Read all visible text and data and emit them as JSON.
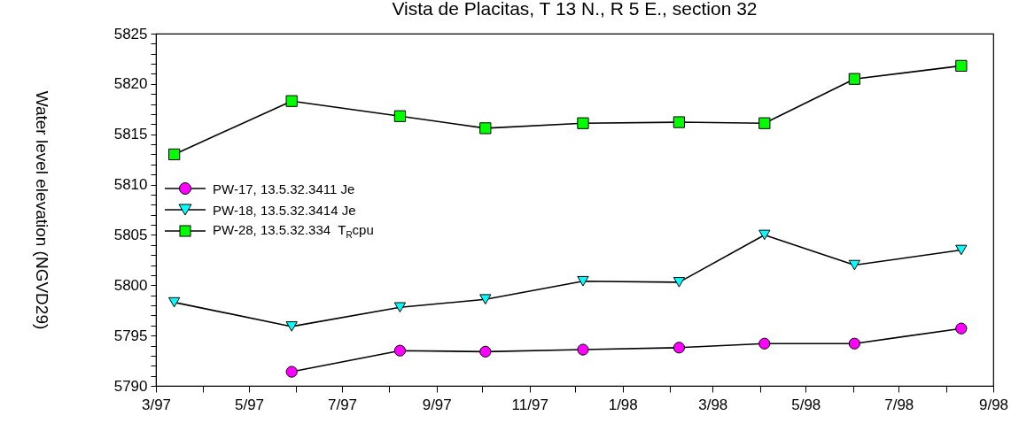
{
  "chart_data": {
    "type": "line",
    "title": "Vista de Placitas, T 13 N., R 5 E., section 32",
    "ylabel": "Water level elevation (NGVD29)",
    "x": [
      "1997-03-13",
      "1997-05-29",
      "1997-08-08",
      "1997-10-03",
      "1997-12-06",
      "1998-02-07",
      "1998-04-04",
      "1998-06-02",
      "1998-08-11"
    ],
    "series": [
      {
        "name": "PW-17, 13.5.32.3411 Je",
        "color": "#ff00ff",
        "marker": "circle",
        "values": [
          null,
          5791.4,
          5793.5,
          5793.4,
          5793.6,
          5793.8,
          5794.2,
          5794.2,
          5795.7
        ]
      },
      {
        "name": "PW-18, 13.5.32.3414 Je",
        "color": "#00ffff",
        "marker": "triangle",
        "values": [
          5798.3,
          5795.9,
          5797.8,
          5798.6,
          5800.4,
          5800.3,
          5805.0,
          5802.0,
          5803.5
        ]
      },
      {
        "name": "PW-28, 13.5.32.334  T$_{R}$cpu",
        "color": "#00ff00",
        "marker": "square",
        "values": [
          5813.0,
          5818.3,
          5816.8,
          5815.6,
          5816.1,
          5816.2,
          5816.1,
          5820.5,
          5821.8
        ]
      }
    ],
    "xlim": [
      "1997-03-01",
      "1998-09-01"
    ],
    "xticks": [
      {
        "value": "1997-03-01",
        "label": "3/97"
      },
      {
        "value": "1997-04-01",
        "label": null
      },
      {
        "value": "1997-05-01",
        "label": "5/97"
      },
      {
        "value": "1997-06-01",
        "label": null
      },
      {
        "value": "1997-07-01",
        "label": "7/97"
      },
      {
        "value": "1997-08-01",
        "label": null
      },
      {
        "value": "1997-09-01",
        "label": "9/97"
      },
      {
        "value": "1997-10-01",
        "label": null
      },
      {
        "value": "1997-11-01",
        "label": "11/97"
      },
      {
        "value": "1997-12-01",
        "label": null
      },
      {
        "value": "1998-01-01",
        "label": "1/98"
      },
      {
        "value": "1998-02-01",
        "label": null
      },
      {
        "value": "1998-03-01",
        "label": "3/98"
      },
      {
        "value": "1998-04-01",
        "label": null
      },
      {
        "value": "1998-05-01",
        "label": "5/98"
      },
      {
        "value": "1998-06-01",
        "label": null
      },
      {
        "value": "1998-07-01",
        "label": "7/98"
      },
      {
        "value": "1998-08-01",
        "label": null
      },
      {
        "value": "1998-09-01",
        "label": "9/98"
      }
    ],
    "ylim": [
      5790,
      5825
    ],
    "yticks": [
      5790,
      {
        "value": 5791,
        "label": null
      },
      {
        "value": 5792,
        "label": null
      },
      {
        "value": 5793,
        "label": null
      },
      {
        "value": 5794,
        "label": null
      },
      5795,
      {
        "value": 5796,
        "label": null
      },
      {
        "value": 5797,
        "label": null
      },
      {
        "value": 5798,
        "label": null
      },
      {
        "value": 5799,
        "label": null
      },
      5800,
      {
        "value": 5801,
        "label": null
      },
      {
        "value": 5802,
        "label": null
      },
      {
        "value": 5803,
        "label": null
      },
      {
        "value": 5804,
        "label": null
      },
      5805,
      {
        "value": 5806,
        "label": null
      },
      {
        "value": 5807,
        "label": null
      },
      {
        "value": 5808,
        "label": null
      },
      {
        "value": 5809,
        "label": null
      },
      5810,
      {
        "value": 5811,
        "label": null
      },
      {
        "value": 5812,
        "label": null
      },
      {
        "value": 5813,
        "label": null
      },
      {
        "value": 5814,
        "label": null
      },
      5815,
      {
        "value": 5816,
        "label": null
      },
      {
        "value": 5817,
        "label": null
      },
      {
        "value": 5818,
        "label": null
      },
      {
        "value": 5819,
        "label": null
      },
      5820,
      {
        "value": 5821,
        "label": null
      },
      {
        "value": 5822,
        "label": null
      },
      {
        "value": 5823,
        "label": null
      },
      {
        "value": 5824,
        "label": null
      },
      5825
    ],
    "grid": false,
    "legend": "left"
  }
}
